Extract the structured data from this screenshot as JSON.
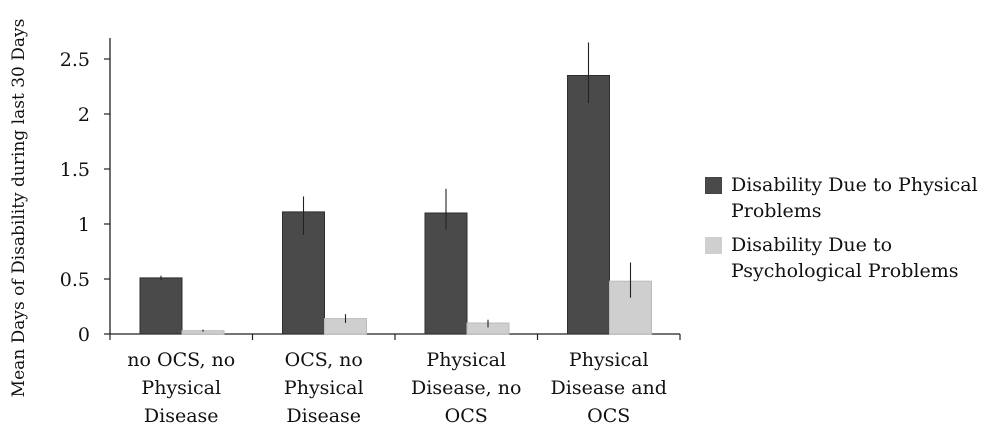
{
  "chart_data": {
    "type": "bar",
    "title": "",
    "xlabel": "",
    "ylabel": "Mean Days of Disability during last 30 Days",
    "ylim": [
      0,
      2.5
    ],
    "yticks": [
      "0",
      "0.5",
      "1",
      "1.5",
      "2",
      "2.5"
    ],
    "ytick_values": [
      0,
      0.5,
      1,
      1.5,
      2,
      2.5
    ],
    "grid": false,
    "legend_position": "right",
    "categories": [
      [
        "no OCS, no",
        "Physical",
        "Disease"
      ],
      [
        "OCS, no",
        "Physical",
        "Disease"
      ],
      [
        "Physical",
        "Disease, no",
        "OCS"
      ],
      [
        "Physical",
        "Disease and",
        "OCS"
      ]
    ],
    "series": [
      {
        "name": "Disability Due to Physical Problems",
        "legend_lines": [
          "Disability Due to Physical",
          "Problems"
        ],
        "color": "#4a4a4a",
        "values": [
          0.51,
          1.11,
          1.1,
          2.35
        ],
        "error_low": [
          0.49,
          0.9,
          0.95,
          2.1
        ],
        "error_high": [
          0.53,
          1.25,
          1.32,
          2.65
        ]
      },
      {
        "name": "Disability Due to Psychological Problems",
        "legend_lines": [
          "Disability Due to",
          "Psychological Problems"
        ],
        "color": "#cfcfcf",
        "values": [
          0.03,
          0.14,
          0.1,
          0.48
        ],
        "error_low": [
          0.02,
          0.1,
          0.06,
          0.33
        ],
        "error_high": [
          0.04,
          0.18,
          0.13,
          0.65
        ]
      }
    ]
  }
}
